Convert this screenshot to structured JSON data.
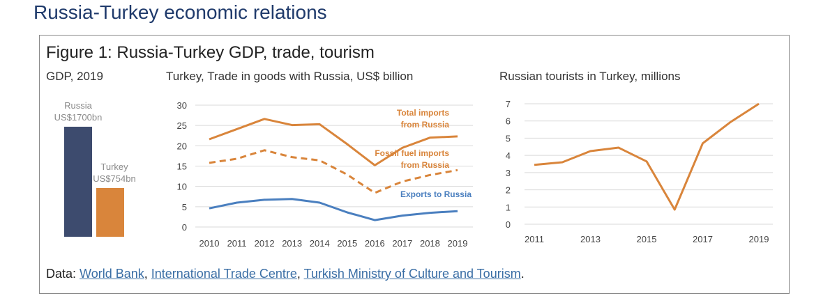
{
  "page_title": "Russia-Turkey economic relations",
  "figure_title": "Figure 1: Russia-Turkey GDP, trade, tourism",
  "colors": {
    "navy": "#3d4b6e",
    "orange": "#d9853b",
    "blue": "#4a7fbf",
    "grid": "#d9d9d9"
  },
  "chart_data": [
    {
      "type": "bar",
      "title": "GDP, 2019",
      "categories": [
        "Russia",
        "Turkey"
      ],
      "values": [
        1700,
        754
      ],
      "data_labels": [
        [
          "Russia",
          "US$1700bn"
        ],
        [
          "Turkey",
          "US$754bn"
        ]
      ],
      "colors": [
        "#3d4b6e",
        "#d9853b"
      ]
    },
    {
      "type": "line",
      "title": "Turkey, Trade in goods with Russia, US$ billion",
      "x": [
        "2010",
        "2011",
        "2012",
        "2013",
        "2014",
        "2015",
        "2016",
        "2017",
        "2018",
        "2019"
      ],
      "ylim": [
        0,
        30
      ],
      "yticks": [
        "0",
        "5",
        "10",
        "15",
        "20",
        "25",
        "30"
      ],
      "grid": true,
      "series": [
        {
          "name": "Total imports from Russia",
          "label_lines": [
            "Total imports",
            "from Russia"
          ],
          "style": "solid",
          "color": "#d9853b",
          "values": [
            21.6,
            24.1,
            26.6,
            25.1,
            25.3,
            20.4,
            15.2,
            19.5,
            22.0,
            22.3
          ]
        },
        {
          "name": "Fossil fuel imports from Russia",
          "label_lines": [
            "Fossil fuel imports",
            "from Russia"
          ],
          "style": "dashed",
          "color": "#d9853b",
          "values": [
            15.8,
            16.8,
            18.9,
            17.2,
            16.4,
            12.9,
            8.4,
            11.2,
            12.8,
            14.0
          ]
        },
        {
          "name": "Exports to Russia",
          "label_lines": [
            "Exports to Russia"
          ],
          "style": "solid",
          "color": "#4a7fbf",
          "values": [
            4.6,
            6.0,
            6.7,
            6.9,
            6.0,
            3.6,
            1.7,
            2.8,
            3.5,
            3.9
          ]
        }
      ]
    },
    {
      "type": "line",
      "title": "Russian tourists in Turkey, millions",
      "x": [
        "2011",
        "2012",
        "2013",
        "2014",
        "2015",
        "2016",
        "2017",
        "2018",
        "2019"
      ],
      "xticks": [
        "2011",
        "2013",
        "2015",
        "2017",
        "2019"
      ],
      "ylim": [
        0,
        7
      ],
      "yticks": [
        "0",
        "1",
        "2",
        "3",
        "4",
        "5",
        "6",
        "7"
      ],
      "grid": true,
      "series": [
        {
          "color": "#d9853b",
          "values": [
            3.45,
            3.6,
            4.25,
            4.45,
            3.65,
            0.85,
            4.7,
            5.95,
            7.0
          ]
        }
      ]
    }
  ],
  "source": {
    "prefix": "Data: ",
    "links": [
      "World Bank",
      "International Trade Centre",
      "Turkish Ministry of Culture and Tourism"
    ],
    "sep": ", ",
    "suffix": "."
  }
}
